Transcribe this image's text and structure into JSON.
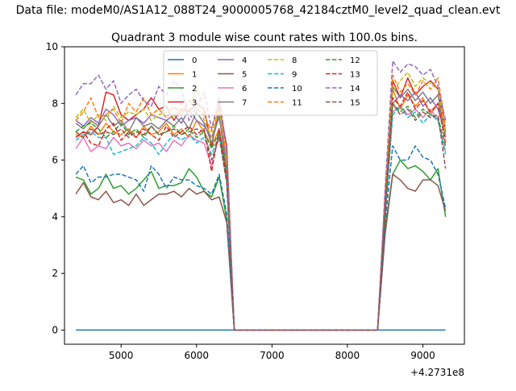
{
  "chart_data": {
    "type": "line",
    "suptitle": "Data file: modeM0/AS1A12_088T24_9000005768_42184cztM0_level2_quad_clean.evt",
    "title": "Quadrant 3 module wise count rates with 100.0s bins.",
    "xlabel": "",
    "ylabel": "",
    "x_offset_label": "+4.2731e8",
    "xlim": [
      4250,
      9550
    ],
    "ylim": [
      -0.5,
      10
    ],
    "xticks": [
      5000,
      6000,
      7000,
      8000,
      9000
    ],
    "yticks": [
      0,
      2,
      4,
      6,
      8,
      10
    ],
    "legend_location": "upper-center",
    "legend_columns": 4,
    "x": [
      4400,
      4500,
      4600,
      4700,
      4800,
      4900,
      5000,
      5100,
      5200,
      5300,
      5400,
      5500,
      5600,
      5700,
      5800,
      5900,
      6000,
      6100,
      6200,
      6300,
      6400,
      6500,
      8400,
      8500,
      8600,
      8700,
      8800,
      8900,
      9000,
      9100,
      9200,
      9300
    ],
    "series": [
      {
        "name": "0",
        "color": "#1f77b4",
        "dash": "solid",
        "values": [
          0,
          0,
          0,
          0,
          0,
          0,
          0,
          0,
          0,
          0,
          0,
          0,
          0,
          0,
          0,
          0,
          0,
          0,
          0,
          0,
          0,
          0,
          0,
          0,
          0,
          0,
          0,
          0,
          0,
          0,
          0,
          0
        ]
      },
      {
        "name": "1",
        "color": "#ff7f0e",
        "dash": "solid",
        "values": [
          6.9,
          6.8,
          7.2,
          6.9,
          7.3,
          7.0,
          6.9,
          7.1,
          6.8,
          7.2,
          6.9,
          7.0,
          7.3,
          6.9,
          7.1,
          6.8,
          7.4,
          7.0,
          6.5,
          7.1,
          5.5,
          0,
          0,
          4.6,
          8.5,
          7.8,
          8.3,
          7.9,
          8.2,
          7.6,
          8.0,
          6.8
        ]
      },
      {
        "name": "2",
        "color": "#2ca02c",
        "dash": "solid",
        "values": [
          5.4,
          5.3,
          4.8,
          5.0,
          5.5,
          5.0,
          5.1,
          4.8,
          5.0,
          5.3,
          5.6,
          5.0,
          5.1,
          5.1,
          5.2,
          5.7,
          5.4,
          4.9,
          4.7,
          5.4,
          3.9,
          0,
          0,
          3.6,
          5.5,
          6.0,
          5.7,
          5.8,
          5.6,
          5.3,
          5.7,
          4.0
        ]
      },
      {
        "name": "3",
        "color": "#d62728",
        "dash": "solid",
        "values": [
          6.8,
          7.0,
          6.9,
          7.2,
          8.4,
          8.3,
          7.6,
          7.4,
          7.6,
          7.8,
          8.2,
          7.8,
          7.9,
          7.4,
          7.8,
          7.7,
          8.0,
          7.8,
          6.5,
          7.9,
          6.5,
          0,
          0,
          4.8,
          8.8,
          8.2,
          8.9,
          8.3,
          8.6,
          8.8,
          8.5,
          7.0
        ]
      },
      {
        "name": "4",
        "color": "#9467bd",
        "dash": "solid",
        "values": [
          7.4,
          7.2,
          7.5,
          7.3,
          7.8,
          7.6,
          7.2,
          7.4,
          7.5,
          7.3,
          7.6,
          7.5,
          7.4,
          7.6,
          7.3,
          7.8,
          7.4,
          7.2,
          6.8,
          7.5,
          6.0,
          0,
          0,
          4.7,
          8.0,
          8.3,
          8.1,
          8.4,
          7.9,
          8.2,
          7.8,
          6.9
        ]
      },
      {
        "name": "5",
        "color": "#8c564b",
        "dash": "solid",
        "values": [
          4.8,
          5.2,
          4.7,
          4.6,
          4.9,
          4.5,
          4.6,
          4.4,
          4.8,
          4.4,
          4.6,
          4.8,
          4.8,
          4.9,
          4.7,
          5.0,
          4.8,
          4.9,
          4.6,
          4.7,
          3.8,
          0,
          0,
          3.4,
          5.5,
          5.3,
          5.0,
          4.9,
          5.3,
          5.3,
          5.1,
          4.2
        ]
      },
      {
        "name": "6",
        "color": "#e377c2",
        "dash": "solid",
        "values": [
          6.4,
          6.8,
          6.3,
          6.5,
          6.4,
          6.8,
          6.5,
          6.6,
          6.4,
          6.7,
          6.5,
          6.6,
          6.3,
          6.7,
          6.5,
          6.9,
          6.7,
          6.6,
          5.8,
          6.9,
          5.2,
          0,
          0,
          4.1,
          7.7,
          7.9,
          7.6,
          7.8,
          7.5,
          7.8,
          7.4,
          6.3
        ]
      },
      {
        "name": "7",
        "color": "#7f7f7f",
        "dash": "solid",
        "values": [
          7.3,
          7.1,
          7.4,
          7.2,
          7.6,
          7.2,
          7.4,
          7.0,
          7.5,
          7.2,
          7.3,
          7.1,
          7.4,
          7.2,
          7.5,
          7.1,
          7.7,
          7.3,
          6.6,
          7.6,
          5.6,
          0,
          0,
          4.3,
          8.6,
          8.2,
          8.5,
          8.1,
          8.4,
          8.0,
          8.3,
          6.8
        ]
      },
      {
        "name": "8",
        "color": "#bcbd22",
        "dash": "dashed",
        "values": [
          7.5,
          7.8,
          7.3,
          7.6,
          7.4,
          7.9,
          7.5,
          7.7,
          7.6,
          7.8,
          7.4,
          7.6,
          7.7,
          7.5,
          8.0,
          7.6,
          8.6,
          7.4,
          6.8,
          7.8,
          6.2,
          0,
          0,
          4.6,
          8.4,
          8.8,
          9.1,
          8.6,
          8.9,
          8.7,
          8.5,
          6.9
        ]
      },
      {
        "name": "9",
        "color": "#17becf",
        "dash": "dashed",
        "values": [
          6.7,
          6.9,
          7.0,
          6.8,
          6.8,
          6.2,
          6.3,
          6.4,
          6.5,
          6.8,
          6.6,
          6.2,
          6.6,
          6.9,
          6.7,
          6.9,
          6.6,
          6.8,
          6.2,
          6.9,
          5.3,
          0,
          0,
          4.0,
          7.6,
          7.9,
          7.5,
          7.7,
          7.3,
          7.6,
          7.4,
          6.2
        ]
      },
      {
        "name": "10",
        "color": "#1f77b4",
        "dash": "dashed",
        "values": [
          5.5,
          5.8,
          5.2,
          5.4,
          5.4,
          5.5,
          5.5,
          5.4,
          5.3,
          4.9,
          5.8,
          5.5,
          5.0,
          5.4,
          5.3,
          5.3,
          5.1,
          5.0,
          4.8,
          5.5,
          4.1,
          0,
          0,
          3.8,
          6.5,
          6.0,
          6.0,
          6.5,
          6.1,
          6.0,
          5.5,
          4.3
        ]
      },
      {
        "name": "11",
        "color": "#ff7f0e",
        "dash": "dashed",
        "values": [
          7.4,
          7.7,
          8.2,
          7.5,
          7.6,
          7.8,
          7.3,
          8.0,
          7.7,
          8.2,
          7.6,
          7.8,
          7.5,
          7.9,
          7.6,
          8.1,
          7.8,
          7.6,
          7.0,
          8.0,
          6.0,
          0,
          0,
          4.7,
          9.0,
          8.4,
          8.7,
          8.3,
          8.8,
          8.5,
          8.9,
          7.2
        ]
      },
      {
        "name": "12",
        "color": "#2ca02c",
        "dash": "dashed",
        "values": [
          7.0,
          7.2,
          7.3,
          7.1,
          6.8,
          7.0,
          7.3,
          6.9,
          7.1,
          6.8,
          7.2,
          6.9,
          7.0,
          7.2,
          6.9,
          7.1,
          6.8,
          7.0,
          6.4,
          7.0,
          5.7,
          0,
          0,
          4.4,
          8.0,
          7.7,
          7.9,
          7.5,
          7.8,
          7.6,
          7.5,
          6.5
        ]
      },
      {
        "name": "13",
        "color": "#d62728",
        "dash": "dashed",
        "values": [
          6.8,
          7.0,
          6.6,
          6.5,
          7.1,
          7.3,
          6.7,
          7.0,
          6.8,
          7.1,
          6.9,
          6.7,
          7.2,
          6.8,
          7.0,
          7.2,
          6.9,
          7.1,
          5.6,
          7.1,
          5.4,
          0,
          0,
          4.3,
          8.2,
          7.9,
          8.4,
          7.8,
          8.1,
          7.7,
          8.0,
          6.6
        ]
      },
      {
        "name": "14",
        "color": "#9467bd",
        "dash": "dashed",
        "values": [
          8.3,
          8.7,
          8.7,
          9.0,
          8.5,
          8.8,
          8.0,
          8.3,
          8.5,
          8.1,
          7.9,
          8.6,
          8.3,
          8.8,
          8.5,
          7.4,
          7.9,
          8.4,
          7.1,
          8.2,
          6.4,
          0,
          0,
          5.0,
          9.5,
          9.1,
          9.4,
          9.3,
          9.0,
          9.2,
          8.6,
          7.4
        ]
      },
      {
        "name": "15",
        "color": "#8c564b",
        "dash": "dashed",
        "values": [
          7.0,
          6.8,
          7.1,
          6.9,
          7.0,
          6.9,
          7.1,
          6.8,
          7.0,
          6.9,
          7.2,
          6.9,
          7.0,
          7.1,
          6.9,
          7.0,
          7.1,
          7.0,
          6.0,
          6.8,
          5.2,
          0,
          0,
          4.1,
          8.0,
          7.6,
          7.8,
          7.4,
          7.7,
          7.5,
          7.6,
          5.7
        ]
      }
    ]
  }
}
